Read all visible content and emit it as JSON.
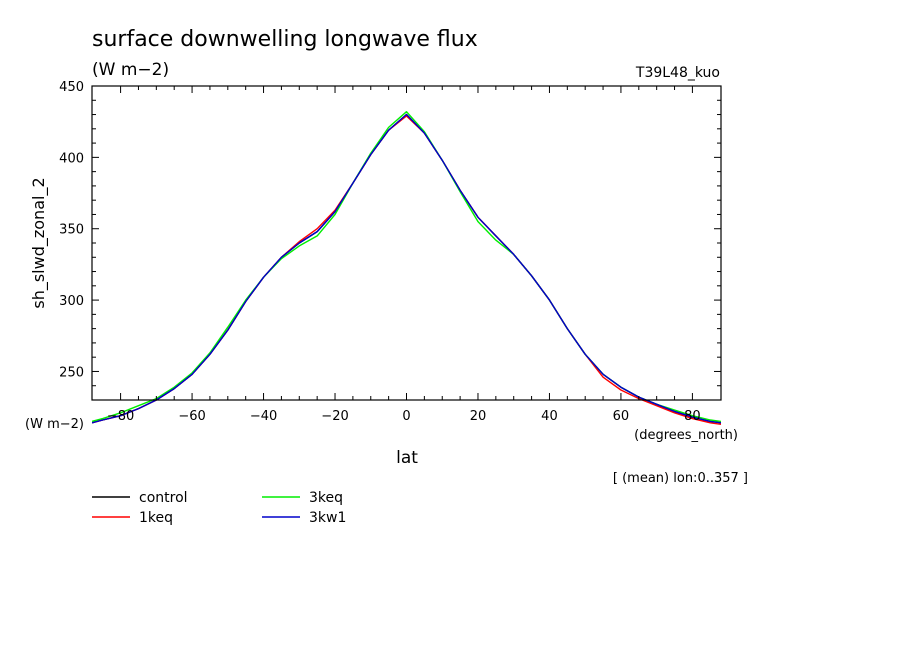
{
  "chart_data": {
    "type": "line",
    "title": "surface downwelling longwave flux",
    "subtitle": "(W m−2)",
    "run_label": "T39L48_kuo",
    "ylabel": "sh_slwd_zonal_2",
    "xlabel": "lat",
    "x_units": "(degrees_north)",
    "y_units": "(W m−2)",
    "footnote": "[ (mean) lon:0..357 ]",
    "xlim": [
      -88,
      88
    ],
    "ylim": [
      230,
      450
    ],
    "xticks": [
      -80,
      -60,
      -40,
      -20,
      0,
      20,
      40,
      60,
      80
    ],
    "xtick_labels": [
      "−80",
      "−60",
      "−40",
      "−20",
      "0",
      "20",
      "40",
      "60",
      "80"
    ],
    "yticks": [
      250,
      300,
      350,
      400,
      450
    ],
    "x": [
      -88,
      -85,
      -80,
      -75,
      -70,
      -65,
      -60,
      -55,
      -50,
      -45,
      -40,
      -35,
      -30,
      -25,
      -20,
      -15,
      -10,
      -5,
      0,
      5,
      10,
      15,
      20,
      25,
      30,
      35,
      40,
      45,
      50,
      55,
      60,
      65,
      70,
      75,
      80,
      85,
      88
    ],
    "series": [
      {
        "name": "control",
        "color": "#000000",
        "values": [
          214,
          216,
          219,
          224,
          230,
          238,
          248,
          262,
          279,
          299,
          316,
          330,
          340,
          348,
          362,
          382,
          402,
          419,
          430,
          417,
          398,
          377,
          358,
          345,
          332,
          317,
          300,
          280,
          262,
          248,
          239,
          232,
          227,
          222,
          218,
          215,
          214
        ]
      },
      {
        "name": "1keq",
        "color": "#ff0000",
        "values": [
          214,
          216,
          219,
          224,
          230,
          238,
          248,
          262,
          279,
          299,
          316,
          330,
          341,
          350,
          363,
          382,
          402,
          419,
          429,
          417,
          398,
          377,
          358,
          345,
          332,
          317,
          300,
          280,
          262,
          246,
          237,
          231,
          226,
          221,
          217,
          214,
          213
        ]
      },
      {
        "name": "3keq",
        "color": "#00ee00",
        "values": [
          215,
          217,
          221,
          226,
          231,
          239,
          249,
          263,
          281,
          300,
          316,
          329,
          338,
          345,
          360,
          382,
          403,
          421,
          432,
          418,
          398,
          376,
          355,
          342,
          332,
          317,
          300,
          280,
          262,
          248,
          239,
          232,
          227,
          223,
          219,
          216,
          215
        ]
      },
      {
        "name": "3kw1",
        "color": "#0000cc",
        "values": [
          214,
          216,
          219,
          224,
          230,
          238,
          248,
          262,
          279,
          299,
          316,
          330,
          340,
          348,
          362,
          382,
          402,
          419,
          430,
          417,
          398,
          377,
          358,
          345,
          332,
          317,
          300,
          280,
          262,
          248,
          239,
          232,
          227,
          222,
          218,
          215,
          214
        ]
      }
    ],
    "grid": false,
    "legend_position": "bottom-left"
  }
}
